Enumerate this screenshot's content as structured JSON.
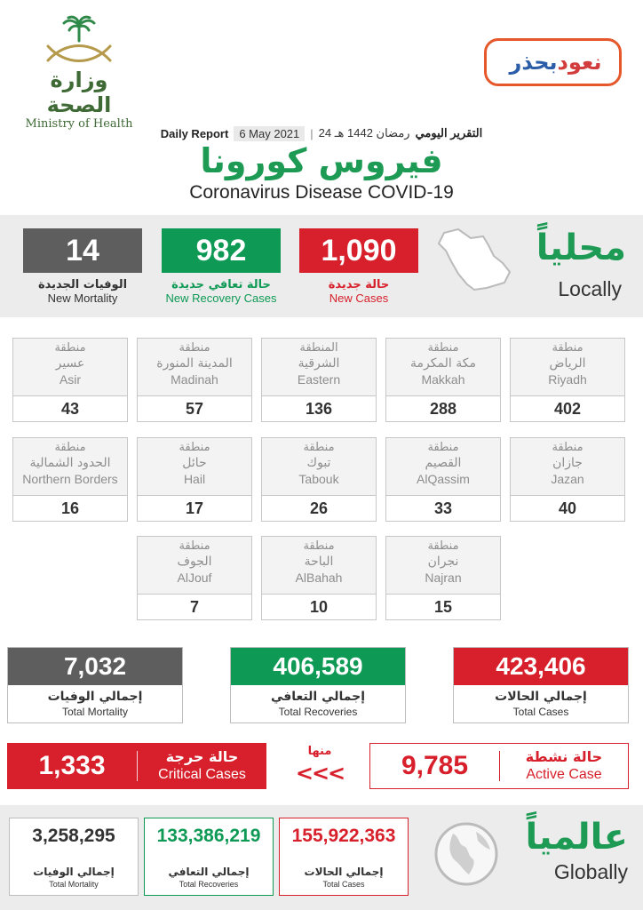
{
  "header": {
    "ministry_ar": "وزارة الصحة",
    "ministry_en": "Ministry of Health",
    "badge_word1": "نعود",
    "badge_word2": "بحذر",
    "daily_report_en": "Daily Report",
    "date_en": "6 May 2021",
    "hijri_date": "24 رمضان 1442 هـ",
    "daily_report_ar": "التقرير اليومي",
    "title_ar": "فيروس كورونا",
    "title_en": "Coronavirus Disease COVID-19"
  },
  "local": {
    "label_ar": "محلياً",
    "label_en": "Locally",
    "new_cases": {
      "value": "1,090",
      "ar": "حالة جديدة",
      "en": "New Cases"
    },
    "new_recovery": {
      "value": "982",
      "ar": "حالة تعافي جديدة",
      "en": "New Recovery Cases"
    },
    "new_mortality": {
      "value": "14",
      "ar": "الوفيات الجديدة",
      "en": "New Mortality"
    }
  },
  "regions": [
    {
      "label": "منطقة",
      "name_ar": "الرياض",
      "name_en": "Riyadh",
      "value": "402"
    },
    {
      "label": "منطقة",
      "name_ar": "مكة المكرمة",
      "name_en": "Makkah",
      "value": "288"
    },
    {
      "label": "المنطقة",
      "name_ar": "الشرقية",
      "name_en": "Eastern",
      "value": "136"
    },
    {
      "label": "منطقة",
      "name_ar": "المدينة المنورة",
      "name_en": "Madinah",
      "value": "57"
    },
    {
      "label": "منطقة",
      "name_ar": "عسير",
      "name_en": "Asir",
      "value": "43"
    },
    {
      "label": "منطقة",
      "name_ar": "جازان",
      "name_en": "Jazan",
      "value": "40"
    },
    {
      "label": "منطقة",
      "name_ar": "القصيم",
      "name_en": "AlQassim",
      "value": "33"
    },
    {
      "label": "منطقة",
      "name_ar": "تبوك",
      "name_en": "Tabouk",
      "value": "26"
    },
    {
      "label": "منطقة",
      "name_ar": "حائل",
      "name_en": "Hail",
      "value": "17"
    },
    {
      "label": "منطقة",
      "name_ar": "الحدود الشمالية",
      "name_en": "Northern Borders",
      "value": "16"
    },
    {
      "label": "منطقة",
      "name_ar": "نجران",
      "name_en": "Najran",
      "value": "15"
    },
    {
      "label": "منطقة",
      "name_ar": "الباحة",
      "name_en": "AlBahah",
      "value": "10"
    },
    {
      "label": "منطقة",
      "name_ar": "الجوف",
      "name_en": "AlJouf",
      "value": "7"
    }
  ],
  "totals": {
    "cases": {
      "value": "423,406",
      "ar": "إجمالي الحالات",
      "en": "Total Cases"
    },
    "recoveries": {
      "value": "406,589",
      "ar": "إجمالي التعافي",
      "en": "Total Recoveries"
    },
    "mortality": {
      "value": "7,032",
      "ar": "إجمالي الوفيات",
      "en": "Total Mortality"
    }
  },
  "critical": {
    "value": "1,333",
    "ar": "حالة حرجة",
    "en": "Critical Cases"
  },
  "active": {
    "value": "9,785",
    "ar": "حالة نشطة",
    "en": "Active Case"
  },
  "of_which_ar": "منها",
  "arrows": "<<<",
  "global": {
    "label_ar": "عالمياً",
    "label_en": "Globally",
    "cases": {
      "value": "155,922,363",
      "ar": "إجمالي الحالات",
      "en": "Total Cases"
    },
    "recoveries": {
      "value": "133,386,219",
      "ar": "إجمالي التعافي",
      "en": "Total Recoveries"
    },
    "mortality": {
      "value": "3,258,295",
      "ar": "إجمالي الوفيات",
      "en": "Total Mortality"
    }
  },
  "colors": {
    "red": "#d7202b",
    "green": "#0e9a55",
    "gray": "#5e5e5e",
    "brand_green": "#1d9a54"
  },
  "icons": {
    "ministry": "palm-swords-emblem-icon",
    "map": "saudi-map-icon",
    "globe": "globe-icon"
  }
}
